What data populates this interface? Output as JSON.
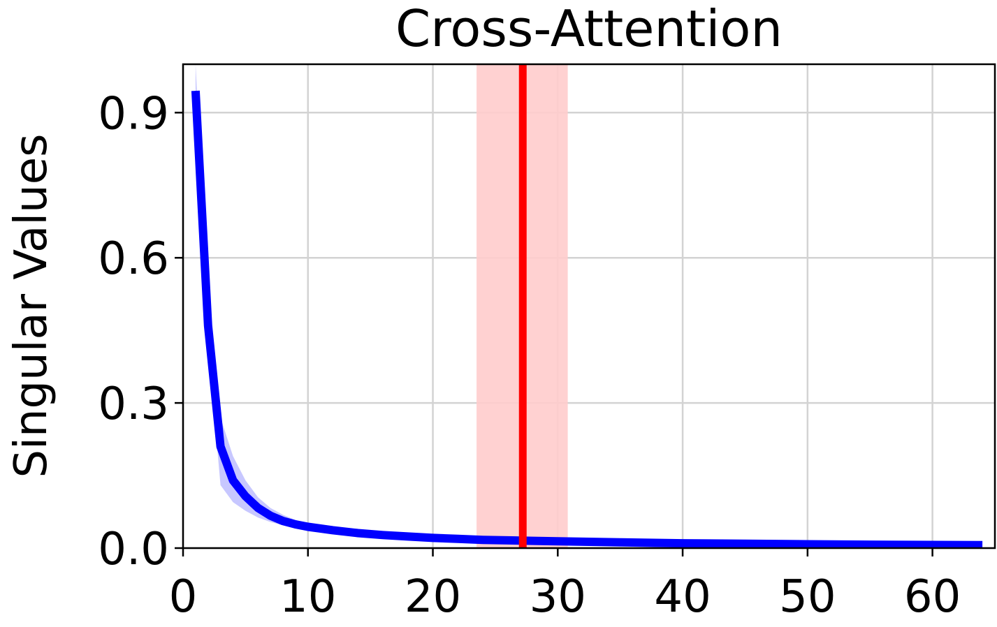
{
  "chart_data": {
    "type": "line",
    "title": "Cross-Attention",
    "xlabel": "",
    "ylabel": "Singular Values",
    "xlim": [
      0,
      65
    ],
    "ylim": [
      0,
      1.0
    ],
    "x_ticks": [
      0,
      10,
      20,
      30,
      40,
      50,
      60
    ],
    "x_tick_labels": [
      "0",
      "10",
      "20",
      "30",
      "40",
      "50",
      "60"
    ],
    "y_ticks": [
      0.0,
      0.3,
      0.6,
      0.9
    ],
    "y_tick_labels": [
      "0.0",
      "0.3",
      "0.6",
      "0.9"
    ],
    "grid": true,
    "series": [
      {
        "color": "#0000ff",
        "band_color": "#0000ff",
        "x": [
          1,
          2,
          3,
          4,
          5,
          6,
          7,
          8,
          9,
          10,
          12,
          14,
          16,
          18,
          20,
          22,
          24,
          26,
          28,
          30,
          35,
          40,
          45,
          50,
          55,
          60,
          64
        ],
        "y": [
          0.945,
          0.46,
          0.21,
          0.14,
          0.107,
          0.083,
          0.067,
          0.056,
          0.049,
          0.044,
          0.037,
          0.031,
          0.027,
          0.024,
          0.021,
          0.019,
          0.017,
          0.016,
          0.015,
          0.014,
          0.012,
          0.01,
          0.009,
          0.008,
          0.007,
          0.0065,
          0.006
        ],
        "y_low": [
          0.94,
          0.42,
          0.13,
          0.095,
          0.077,
          0.063,
          0.054,
          0.047,
          0.041,
          0.037,
          0.031,
          0.027,
          0.024,
          0.021,
          0.019,
          0.017,
          0.016,
          0.015,
          0.014,
          0.013,
          0.011,
          0.009,
          0.008,
          0.0075,
          0.0068,
          0.0062,
          0.0058
        ],
        "y_high": [
          1.0,
          0.5,
          0.27,
          0.19,
          0.14,
          0.105,
          0.083,
          0.069,
          0.058,
          0.051,
          0.043,
          0.035,
          0.03,
          0.026,
          0.023,
          0.021,
          0.019,
          0.017,
          0.016,
          0.015,
          0.013,
          0.011,
          0.0095,
          0.0085,
          0.0075,
          0.0068,
          0.0062
        ]
      }
    ],
    "vertical_line": {
      "x": 27.2,
      "color": "#ff0000"
    },
    "vertical_span": {
      "x_start": 23.5,
      "x_end": 30.8,
      "color": "#ffcccc"
    }
  }
}
